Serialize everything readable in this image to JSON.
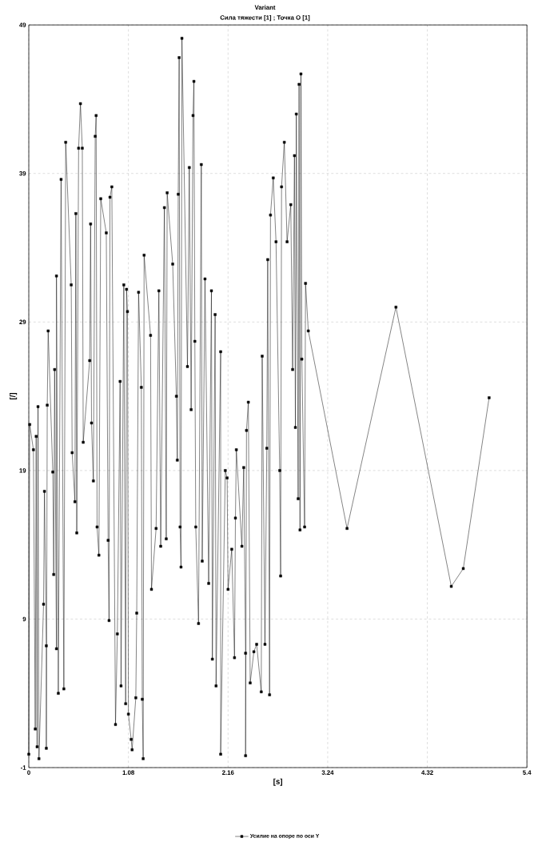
{
  "chart_data": {
    "type": "line",
    "title": "Variant",
    "subtitle": "Сила тяжести [1] ; Точка O [1]",
    "xlabel": "[s]",
    "ylabel": "[/]",
    "xlim": [
      0,
      5.4
    ],
    "ylim": [
      -1,
      49
    ],
    "xticks": [
      0,
      1.08,
      2.16,
      3.24,
      4.32,
      5.4
    ],
    "yticks": [
      -1,
      9,
      19,
      29,
      39,
      49
    ],
    "grid": true,
    "legend": "bottom",
    "marker": "square",
    "line_style": "solid",
    "series": [
      {
        "name": "Усилие на опоре по оси Y",
        "color": "#000000",
        "x": [
          0,
          0.01,
          0.05,
          0.07,
          0.08,
          0.09,
          0.1,
          0.11,
          0.16,
          0.17,
          0.19,
          0.19,
          0.2,
          0.21,
          0.26,
          0.27,
          0.28,
          0.3,
          0.3,
          0.32,
          0.35,
          0.38,
          0.4,
          0.46,
          0.47,
          0.5,
          0.51,
          0.52,
          0.54,
          0.56,
          0.58,
          0.59,
          0.66,
          0.67,
          0.68,
          0.7,
          0.72,
          0.73,
          0.74,
          0.76,
          0.78,
          0.84,
          0.86,
          0.87,
          0.88,
          0.9,
          0.94,
          0.96,
          0.99,
          1.0,
          1.03,
          1.05,
          1.06,
          1.07,
          1.08,
          1.11,
          1.12,
          1.16,
          1.17,
          1.19,
          1.22,
          1.23,
          1.24,
          1.25,
          1.32,
          1.33,
          1.38,
          1.41,
          1.43,
          1.47,
          1.49,
          1.5,
          1.56,
          1.6,
          1.61,
          1.62,
          1.63,
          1.64,
          1.65,
          1.66,
          1.72,
          1.74,
          1.76,
          1.78,
          1.79,
          1.8,
          1.81,
          1.84,
          1.87,
          1.88,
          1.91,
          1.95,
          1.98,
          1.99,
          2.02,
          2.03,
          2.08,
          2.08,
          2.13,
          2.15,
          2.16,
          2.2,
          2.23,
          2.24,
          2.25,
          2.31,
          2.33,
          2.35,
          2.35,
          2.36,
          2.38,
          2.4,
          2.44,
          2.47,
          2.52,
          2.53,
          2.56,
          2.58,
          2.59,
          2.61,
          2.62,
          2.65,
          2.68,
          2.72,
          2.73,
          2.74,
          2.77,
          2.8,
          2.84,
          2.86,
          2.88,
          2.89,
          2.9,
          2.92,
          2.93,
          2.94,
          2.95,
          2.96,
          2.99,
          3.0,
          3.03,
          3.45,
          3.98,
          4.58,
          4.71,
          4.99
        ],
        "values": [
          -0.1,
          22.1,
          20.4,
          1.6,
          21.3,
          0.4,
          23.3,
          -0.4,
          10.0,
          17.6,
          7.2,
          0.3,
          23.4,
          28.4,
          18.9,
          12.0,
          25.8,
          7.0,
          32.1,
          4.0,
          38.6,
          4.3,
          41.1,
          31.5,
          20.2,
          16.9,
          36.3,
          14.8,
          40.7,
          43.7,
          40.7,
          20.9,
          26.4,
          35.6,
          22.2,
          18.3,
          41.5,
          42.9,
          15.2,
          13.3,
          37.3,
          35.0,
          14.3,
          8.9,
          37.4,
          38.1,
          1.9,
          8.0,
          25.0,
          4.5,
          31.5,
          3.3,
          31.2,
          29.7,
          2.6,
          0.9,
          0.2,
          3.7,
          9.4,
          31.0,
          24.6,
          3.6,
          -0.4,
          33.5,
          28.1,
          11.0,
          15.1,
          31.1,
          13.9,
          36.7,
          14.4,
          37.7,
          32.9,
          24.0,
          19.7,
          37.6,
          46.8,
          15.2,
          12.5,
          48.1,
          26.0,
          39.4,
          23.1,
          42.9,
          45.2,
          27.7,
          15.2,
          8.7,
          39.6,
          12.9,
          31.9,
          11.4,
          31.1,
          6.3,
          29.5,
          4.5,
          27.0,
          -0.1,
          19.0,
          18.5,
          11.0,
          13.7,
          6.4,
          15.8,
          20.4,
          13.9,
          19.2,
          6.7,
          -0.2,
          21.7,
          23.6,
          4.7,
          6.8,
          7.3,
          4.1,
          26.7,
          7.3,
          20.5,
          33.2,
          3.9,
          36.2,
          38.7,
          34.4,
          19.0,
          11.9,
          38.1,
          41.1,
          34.4,
          36.9,
          25.8,
          40.2,
          21.9,
          43.0,
          17.1,
          45.0,
          15.0,
          45.7,
          26.5,
          15.2,
          31.6,
          28.4,
          15.1,
          30.0,
          11.2,
          12.4,
          23.9
        ]
      }
    ]
  }
}
